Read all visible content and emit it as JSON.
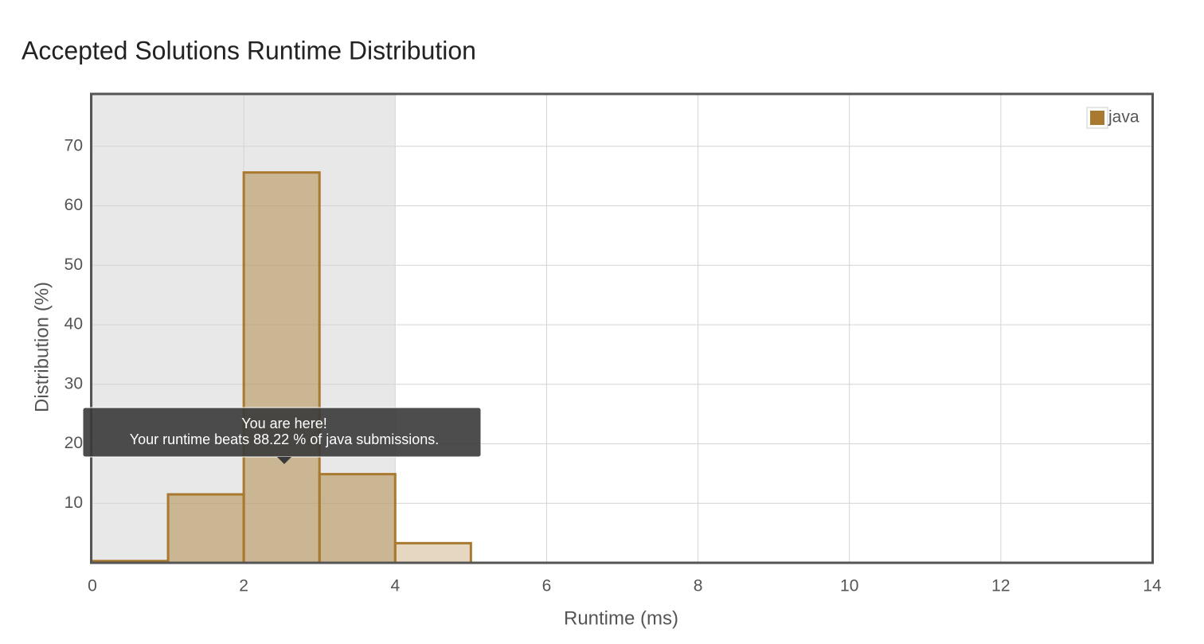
{
  "chart_data": {
    "type": "histogram",
    "title": "Accepted Solutions Runtime Distribution",
    "x_label": "Runtime (ms)",
    "y_label": "Distribution (%)",
    "bins": [
      0,
      1,
      2,
      3,
      4,
      5
    ],
    "series": [
      {
        "name": "java",
        "color": "#a8792f",
        "values": [
          0.3,
          11.5,
          65.6,
          14.9,
          3.3
        ]
      }
    ],
    "xlim": [
      0,
      14
    ],
    "xticks": [
      0,
      2,
      4,
      6,
      8,
      10,
      12,
      14
    ],
    "ylim": [
      0,
      78.8
    ],
    "yticks": [
      10,
      20,
      30,
      40,
      50,
      60,
      70
    ],
    "grid": true,
    "legend": "top-right",
    "highlight_range": [
      0,
      4
    ],
    "annotations": [
      "You are here!",
      "Your runtime beats 88.22 % of java submissions."
    ]
  }
}
